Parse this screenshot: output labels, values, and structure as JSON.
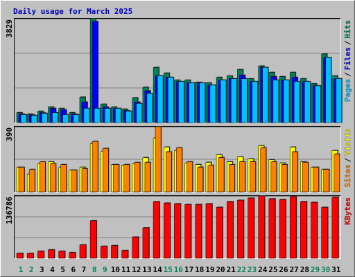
{
  "chart_data": [
    {
      "type": "bar",
      "title": "Daily usage for March 2025",
      "ylim": [
        0,
        3829
      ],
      "yticks": [
        3829
      ],
      "grid": true,
      "legend_separator": "/",
      "series": [
        {
          "name": "Hits",
          "color": "#00805C",
          "values": [
            365,
            313,
            417,
            573,
            521,
            365,
            938,
            3829,
            677,
            573,
            495,
            912,
            1302,
            2032,
            1823,
            1563,
            1563,
            1485,
            1459,
            1667,
            1719,
            1954,
            1615,
            2084,
            1849,
            1693,
            1849,
            1615,
            1433,
            2527,
            1719
          ]
        },
        {
          "name": "Files",
          "color": "#0000FF",
          "values": [
            313,
            287,
            365,
            521,
            469,
            313,
            755,
            3725,
            573,
            521,
            443,
            755,
            1172,
            1719,
            1667,
            1511,
            1459,
            1459,
            1380,
            1563,
            1615,
            1745,
            1511,
            2032,
            1693,
            1563,
            1667,
            1511,
            1355,
            2397,
            1615
          ]
        },
        {
          "name": "Pages",
          "color": "#00C0FF",
          "values": [
            287,
            260,
            339,
            365,
            287,
            287,
            521,
            521,
            521,
            521,
            417,
            703,
            1068,
            1719,
            1667,
            1511,
            1459,
            1459,
            1380,
            1563,
            1615,
            1615,
            1511,
            2032,
            1563,
            1563,
            1511,
            1511,
            1355,
            2397,
            1615
          ]
        }
      ]
    },
    {
      "type": "bar",
      "ylim": [
        0,
        390
      ],
      "yticks": [
        390
      ],
      "grid": true,
      "legend_separator": "/",
      "series": [
        {
          "name": "Visits",
          "color": "#FFFF00",
          "values": [
            147,
            105,
            168,
            180,
            147,
            130,
            147,
            289,
            243,
            163,
            159,
            168,
            205,
            323,
            268,
            247,
            172,
            163,
            176,
            222,
            180,
            210,
            197,
            276,
            192,
            172,
            268,
            180,
            147,
            134,
            247
          ]
        },
        {
          "name": "Sites",
          "color": "#FF8000",
          "values": [
            147,
            134,
            180,
            168,
            163,
            130,
            138,
            302,
            260,
            163,
            163,
            176,
            176,
            390,
            239,
            264,
            180,
            147,
            159,
            205,
            163,
            180,
            180,
            264,
            180,
            163,
            239,
            176,
            147,
            134,
            226
          ]
        }
      ]
    },
    {
      "type": "bar",
      "ylim": [
        0,
        136786
      ],
      "yticks": [
        136786
      ],
      "grid": true,
      "categories": [
        "1",
        "2",
        "3",
        "4",
        "5",
        "6",
        "7",
        "8",
        "9",
        "10",
        "11",
        "12",
        "13",
        "14",
        "15",
        "16",
        "17",
        "18",
        "19",
        "20",
        "21",
        "22",
        "23",
        "24",
        "25",
        "26",
        "27",
        "28",
        "29",
        "30",
        "31"
      ],
      "category_colors": [
        "#00805C",
        "#00805C",
        "#000000",
        "#000000",
        "#000000",
        "#000000",
        "#000000",
        "#00805C",
        "#00805C",
        "#000000",
        "#000000",
        "#000000",
        "#000000",
        "#000000",
        "#00805C",
        "#00805C",
        "#000000",
        "#000000",
        "#000000",
        "#000000",
        "#000000",
        "#00805C",
        "#00805C",
        "#000000",
        "#000000",
        "#000000",
        "#000000",
        "#000000",
        "#00805C",
        "#00805C",
        "#000000"
      ],
      "series": [
        {
          "name": "KBytes",
          "color": "#FF0000",
          "values": [
            10880,
            10880,
            15540,
            18650,
            15540,
            12430,
            29530,
            82400,
            26420,
            27970,
            17090,
            46620,
            66820,
            124320,
            121210,
            119650,
            118100,
            118100,
            119650,
            111880,
            124320,
            127430,
            132090,
            136786,
            130540,
            128980,
            135230,
            124320,
            122760,
            111880,
            133660
          ]
        }
      ]
    }
  ]
}
